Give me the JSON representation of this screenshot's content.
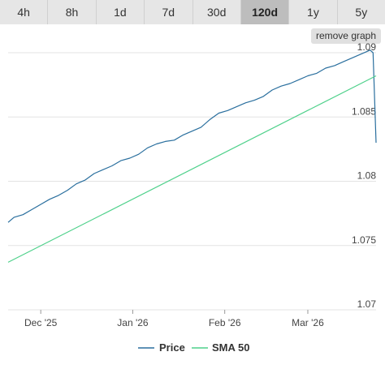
{
  "tabs": [
    {
      "label": "4h",
      "active": false
    },
    {
      "label": "8h",
      "active": false
    },
    {
      "label": "1d",
      "active": false
    },
    {
      "label": "7d",
      "active": false
    },
    {
      "label": "30d",
      "active": false
    },
    {
      "label": "120d",
      "active": true
    },
    {
      "label": "1y",
      "active": false
    },
    {
      "label": "5y",
      "active": false
    }
  ],
  "remove_graph_label": "remove graph",
  "colors": {
    "price": "#2a6f9e",
    "sma": "#4fd18b",
    "grid": "#e3e3e3"
  },
  "chart_data": {
    "type": "line",
    "title": "",
    "xlabel": "",
    "ylabel": "",
    "ylim": [
      1.07,
      1.09
    ],
    "yticks": [
      1.07,
      1.075,
      1.08,
      1.085,
      1.09
    ],
    "ytick_labels": [
      "1.07",
      "1.075",
      "1.08",
      "1.085",
      "1.09"
    ],
    "xlim": [
      "2025-11-20",
      "2026-03-24"
    ],
    "xticks": [
      {
        "date": "2025-12-01",
        "label": "Dec '25"
      },
      {
        "date": "2026-01-01",
        "label": "Jan '26"
      },
      {
        "date": "2026-02-01",
        "label": "Feb '26"
      },
      {
        "date": "2026-03-01",
        "label": "Mar '26"
      }
    ],
    "legend_position": "bottom",
    "series": [
      {
        "name": "Price",
        "x": [
          "2025-11-20",
          "2025-11-22",
          "2025-11-25",
          "2025-11-28",
          "2025-12-01",
          "2025-12-04",
          "2025-12-07",
          "2025-12-10",
          "2025-12-13",
          "2025-12-16",
          "2025-12-19",
          "2025-12-22",
          "2025-12-25",
          "2025-12-28",
          "2025-12-31",
          "2026-01-03",
          "2026-01-06",
          "2026-01-09",
          "2026-01-12",
          "2026-01-15",
          "2026-01-18",
          "2026-01-21",
          "2026-01-24",
          "2026-01-27",
          "2026-01-30",
          "2026-02-02",
          "2026-02-05",
          "2026-02-08",
          "2026-02-11",
          "2026-02-14",
          "2026-02-17",
          "2026-02-20",
          "2026-02-23",
          "2026-02-26",
          "2026-03-01",
          "2026-03-04",
          "2026-03-07",
          "2026-03-10",
          "2026-03-13",
          "2026-03-16",
          "2026-03-19",
          "2026-03-22",
          "2026-03-23",
          "2026-03-24"
        ],
        "values": [
          1.0768,
          1.0772,
          1.0774,
          1.0778,
          1.0782,
          1.0786,
          1.0789,
          1.0793,
          1.0798,
          1.0801,
          1.0806,
          1.0809,
          1.0812,
          1.0816,
          1.0818,
          1.0821,
          1.0826,
          1.0829,
          1.0831,
          1.0832,
          1.0836,
          1.0839,
          1.0842,
          1.0848,
          1.0853,
          1.0855,
          1.0858,
          1.0861,
          1.0863,
          1.0866,
          1.0871,
          1.0874,
          1.0876,
          1.0879,
          1.0882,
          1.0884,
          1.0888,
          1.089,
          1.0893,
          1.0896,
          1.0899,
          1.0902,
          1.09,
          1.083
        ]
      },
      {
        "name": "SMA 50",
        "x": [
          "2025-11-20",
          "2026-03-24"
        ],
        "values": [
          1.0737,
          1.0882
        ]
      }
    ]
  }
}
